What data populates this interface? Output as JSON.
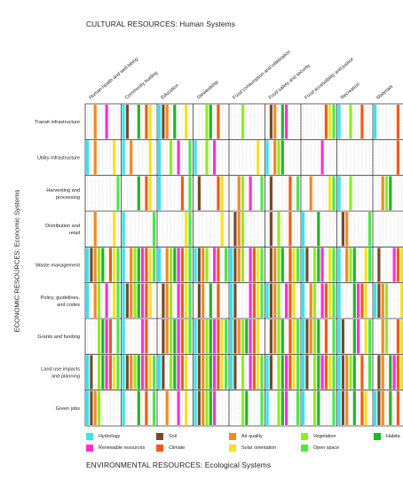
{
  "titles": {
    "top": "CULTURAL RESOURCES: Human Systems",
    "bottom": "ENVIRONMENTAL RESOURCES: Ecological Systems",
    "side": "ECONOMIC RESOURCES: Economic Systems"
  },
  "columns": [
    "Human health and well-being",
    "Community buiding",
    "Education",
    "Stewardship",
    "Food consumption and celebration",
    "Food safety and security",
    "Food accessibility and justice",
    "Recreation",
    "Materials"
  ],
  "rows": [
    "Transit infrastructure",
    "Utility Infrastructure",
    "Harvesting and processing",
    "Distribution and retail",
    "Waste management",
    "Policy, guidelines, and codes",
    "Grants and funding",
    "Land use impacts and planning",
    "Green jobs"
  ],
  "legend": [
    {
      "label": "Hydrology",
      "color": "#3ee0ee",
      "icon": "hydrology-swatch"
    },
    {
      "label": "Soil",
      "color": "#7a4a26",
      "icon": "soil-swatch"
    },
    {
      "label": "Air quality",
      "color": "#f28a1e",
      "icon": "air-quality-swatch"
    },
    {
      "label": "Vegetation",
      "color": "#8cf01a",
      "icon": "vegetation-swatch"
    },
    {
      "label": "Habita",
      "color": "#20b52a",
      "icon": "habitat-swatch"
    },
    {
      "label": "Renewable resources",
      "color": "#ff2ddc",
      "icon": "renewable-resources-swatch"
    },
    {
      "label": "Climate",
      "color": "#f25a16",
      "icon": "climate-swatch"
    },
    {
      "label": "Solar orientation",
      "color": "#f6e21a",
      "icon": "solar-orientation-swatch"
    },
    {
      "label": "Open space",
      "color": "#4be84b",
      "icon": "open-space-swatch"
    }
  ]
}
